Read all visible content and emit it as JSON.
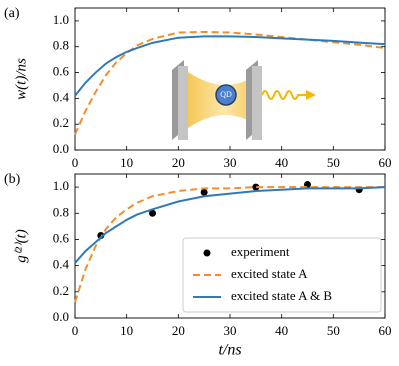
{
  "chart_data": [
    {
      "type": "line",
      "panel_label": "(a)",
      "y_label": "w(t)/ns",
      "inset_label": "QD",
      "xlim": [
        0,
        60
      ],
      "xticks": [
        0,
        10,
        20,
        30,
        40,
        50,
        60
      ],
      "ylim": [
        0,
        1.1
      ],
      "yticks": [
        {
          "value": 0,
          "label": "0.0"
        },
        {
          "value": 0.2,
          "label": "0.2"
        },
        {
          "value": 0.4,
          "label": "0.4"
        },
        {
          "value": 0.6,
          "label": "0.6"
        },
        {
          "value": 0.8,
          "label": "0.8"
        },
        {
          "value": 1.0,
          "label": "1.0"
        }
      ],
      "x": [
        0,
        2,
        4,
        6,
        8,
        10,
        12,
        15,
        20,
        25,
        30,
        35,
        40,
        45,
        50,
        55,
        60
      ],
      "series": [
        {
          "color": "#f28e2b",
          "style": "dashed",
          "values": [
            0.12,
            0.3,
            0.45,
            0.58,
            0.68,
            0.75,
            0.81,
            0.86,
            0.91,
            0.915,
            0.91,
            0.895,
            0.875,
            0.855,
            0.835,
            0.815,
            0.79
          ]
        },
        {
          "color": "#2f7ab8",
          "style": "solid",
          "values": [
            0.42,
            0.52,
            0.6,
            0.67,
            0.72,
            0.76,
            0.79,
            0.83,
            0.87,
            0.88,
            0.88,
            0.875,
            0.865,
            0.855,
            0.845,
            0.832,
            0.82
          ]
        }
      ]
    },
    {
      "type": "line",
      "panel_label": "(b)",
      "y_label": "g⁽²⁾(t)",
      "x_label": "t/ns",
      "xlim": [
        0,
        60
      ],
      "xticks": [
        0,
        10,
        20,
        30,
        40,
        50,
        60
      ],
      "ylim": [
        0,
        1.1
      ],
      "yticks": [
        {
          "value": 0,
          "label": "0.0"
        },
        {
          "value": 0.2,
          "label": "0.2"
        },
        {
          "value": 0.4,
          "label": "0.4"
        },
        {
          "value": 0.6,
          "label": "0.6"
        },
        {
          "value": 0.8,
          "label": "0.8"
        },
        {
          "value": 1.0,
          "label": "1.0"
        }
      ],
      "x": [
        0,
        2,
        4,
        6,
        8,
        10,
        12,
        15,
        20,
        25,
        30,
        35,
        40,
        45,
        50,
        55,
        60
      ],
      "series": [
        {
          "name": "experiment",
          "color": "#000000",
          "style": "points",
          "x": [
            5,
            15,
            25,
            35,
            45,
            55
          ],
          "values": [
            0.63,
            0.8,
            0.96,
            1.0,
            1.02,
            0.98
          ]
        },
        {
          "name": "excited state A",
          "color": "#f28e2b",
          "style": "dashed",
          "values": [
            0.12,
            0.37,
            0.55,
            0.68,
            0.77,
            0.83,
            0.88,
            0.93,
            0.97,
            0.99,
            0.99,
            1.0,
            1.0,
            1.0,
            1.0,
            1.0,
            1.0
          ]
        },
        {
          "name": "excited state A & B",
          "color": "#2f7ab8",
          "style": "solid",
          "values": [
            0.42,
            0.51,
            0.58,
            0.65,
            0.7,
            0.75,
            0.79,
            0.83,
            0.89,
            0.93,
            0.95,
            0.97,
            0.98,
            0.99,
            0.99,
            0.99,
            1.0
          ]
        }
      ],
      "legend": "lower right"
    }
  ]
}
